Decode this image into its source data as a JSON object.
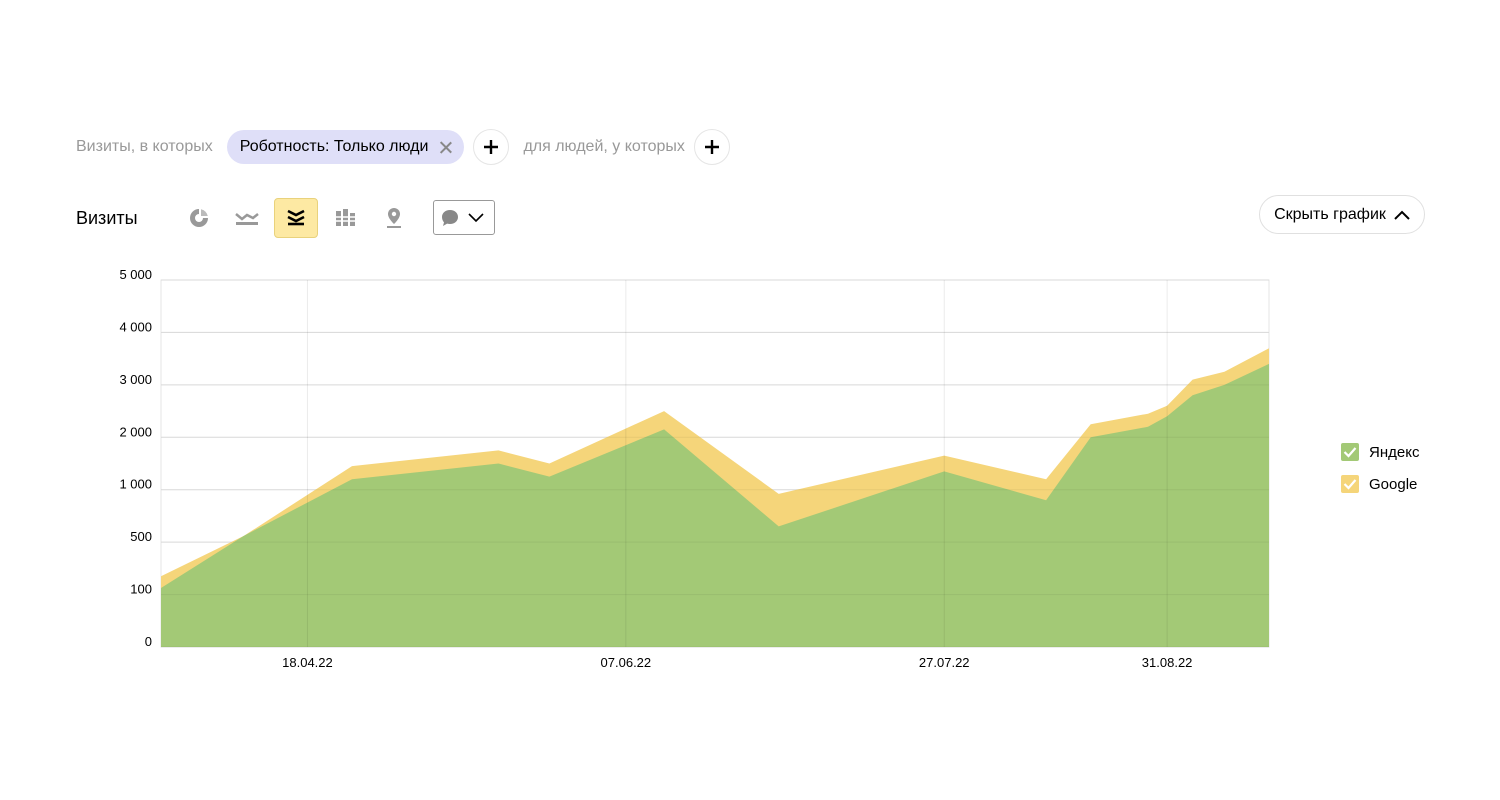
{
  "filters": {
    "visits_label": "Визиты, в которых",
    "chip_label": "Роботность: Только люди",
    "people_label": "для людей, у которых"
  },
  "toolbar": {
    "title": "Визиты",
    "hide_chart_label": "Скрыть график",
    "active_view": "stacked-area"
  },
  "colors": {
    "yandex": "#a3c976",
    "google": "#f5d57a",
    "grid": "#e6e6e6",
    "chip_bg": "#dfdff8",
    "active_button": "#fde9a3"
  },
  "chart_data": {
    "type": "area",
    "stacked": true,
    "y_ticks": [
      "0",
      "100",
      "500",
      "1 000",
      "2 000",
      "3 000",
      "4 000",
      "5 000"
    ],
    "x_tick_labels": [
      "18.04.22",
      "07.06.22",
      "27.07.22",
      "31.08.22"
    ],
    "x": [
      "26.03.22",
      "08.04.22",
      "25.04.22",
      "18.05.22",
      "26.05.22",
      "13.06.22",
      "01.07.22",
      "27.07.22",
      "12.08.22",
      "19.08.22",
      "28.08.22",
      "31.08.22",
      "04.09.22",
      "09.09.22",
      "16.09.22"
    ],
    "series": [
      {
        "name": "Яндекс",
        "color": "#a3c976",
        "values": [
          150,
          560,
          1200,
          1500,
          1250,
          2150,
          650,
          1350,
          900,
          2000,
          2200,
          2400,
          2800,
          3000,
          3400
        ]
      },
      {
        "name": "Google",
        "color": "#f5d57a",
        "values": [
          240,
          190,
          1450,
          1750,
          1500,
          2500,
          960,
          1650,
          1200,
          2250,
          2450,
          2600,
          3100,
          3250,
          3700
        ]
      }
    ],
    "legend_position": "right",
    "grid": true
  }
}
